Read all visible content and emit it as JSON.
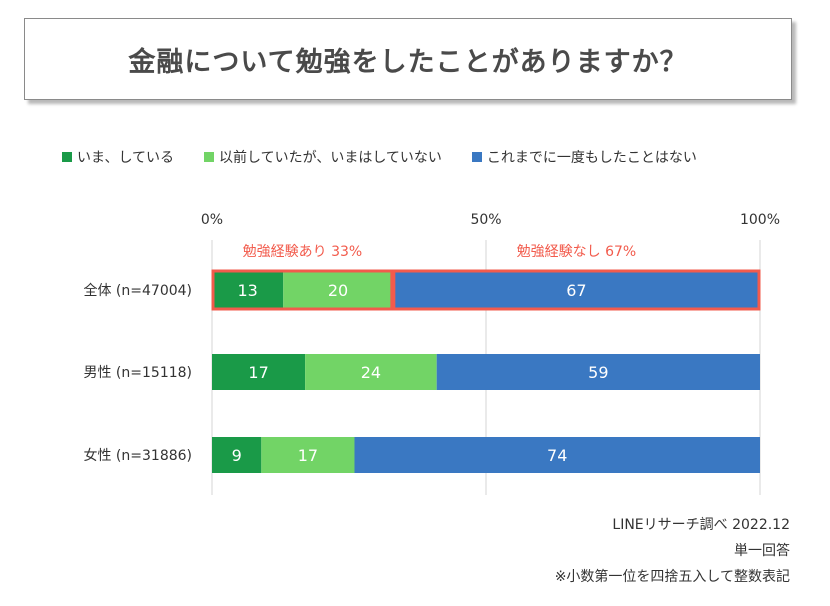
{
  "title": "金融について勉強をしたことがありますか？",
  "legend": [
    {
      "label": "いま、している",
      "color": "#1a9a48"
    },
    {
      "label": "以前していたが、いまはしていない",
      "color": "#72d466"
    },
    {
      "label": "これまでに一度もしたことはない",
      "color": "#3a78c2"
    }
  ],
  "chart_data": {
    "type": "bar",
    "orientation": "horizontal",
    "stacked": true,
    "x_ticks": [
      "0%",
      "50%",
      "100%"
    ],
    "xlim": [
      0,
      100
    ],
    "categories": [
      "全体 (n=47004)",
      "男性 (n=15118)",
      "女性 (n=31886)"
    ],
    "series": [
      {
        "name": "いま、している",
        "values": [
          13,
          17,
          9
        ],
        "color": "#1a9a48"
      },
      {
        "name": "以前していたが、いまはしていない",
        "values": [
          20,
          24,
          17
        ],
        "color": "#72d466"
      },
      {
        "name": "これまでに一度もしたことはない",
        "values": [
          67,
          59,
          74
        ],
        "color": "#3a78c2"
      }
    ],
    "annotations": [
      {
        "text": "勉強経験あり 33%",
        "row": 0,
        "from": 0,
        "to": 33,
        "color": "#f25b4c"
      },
      {
        "text": "勉強経験なし 67%",
        "row": 0,
        "from": 33,
        "to": 100,
        "color": "#f25b4c"
      }
    ],
    "gridlines": "vertical"
  },
  "notes": [
    "LINEリサーチ調べ 2022.12",
    "単一回答",
    "※小数第一位を四捨五入して整数表記"
  ]
}
